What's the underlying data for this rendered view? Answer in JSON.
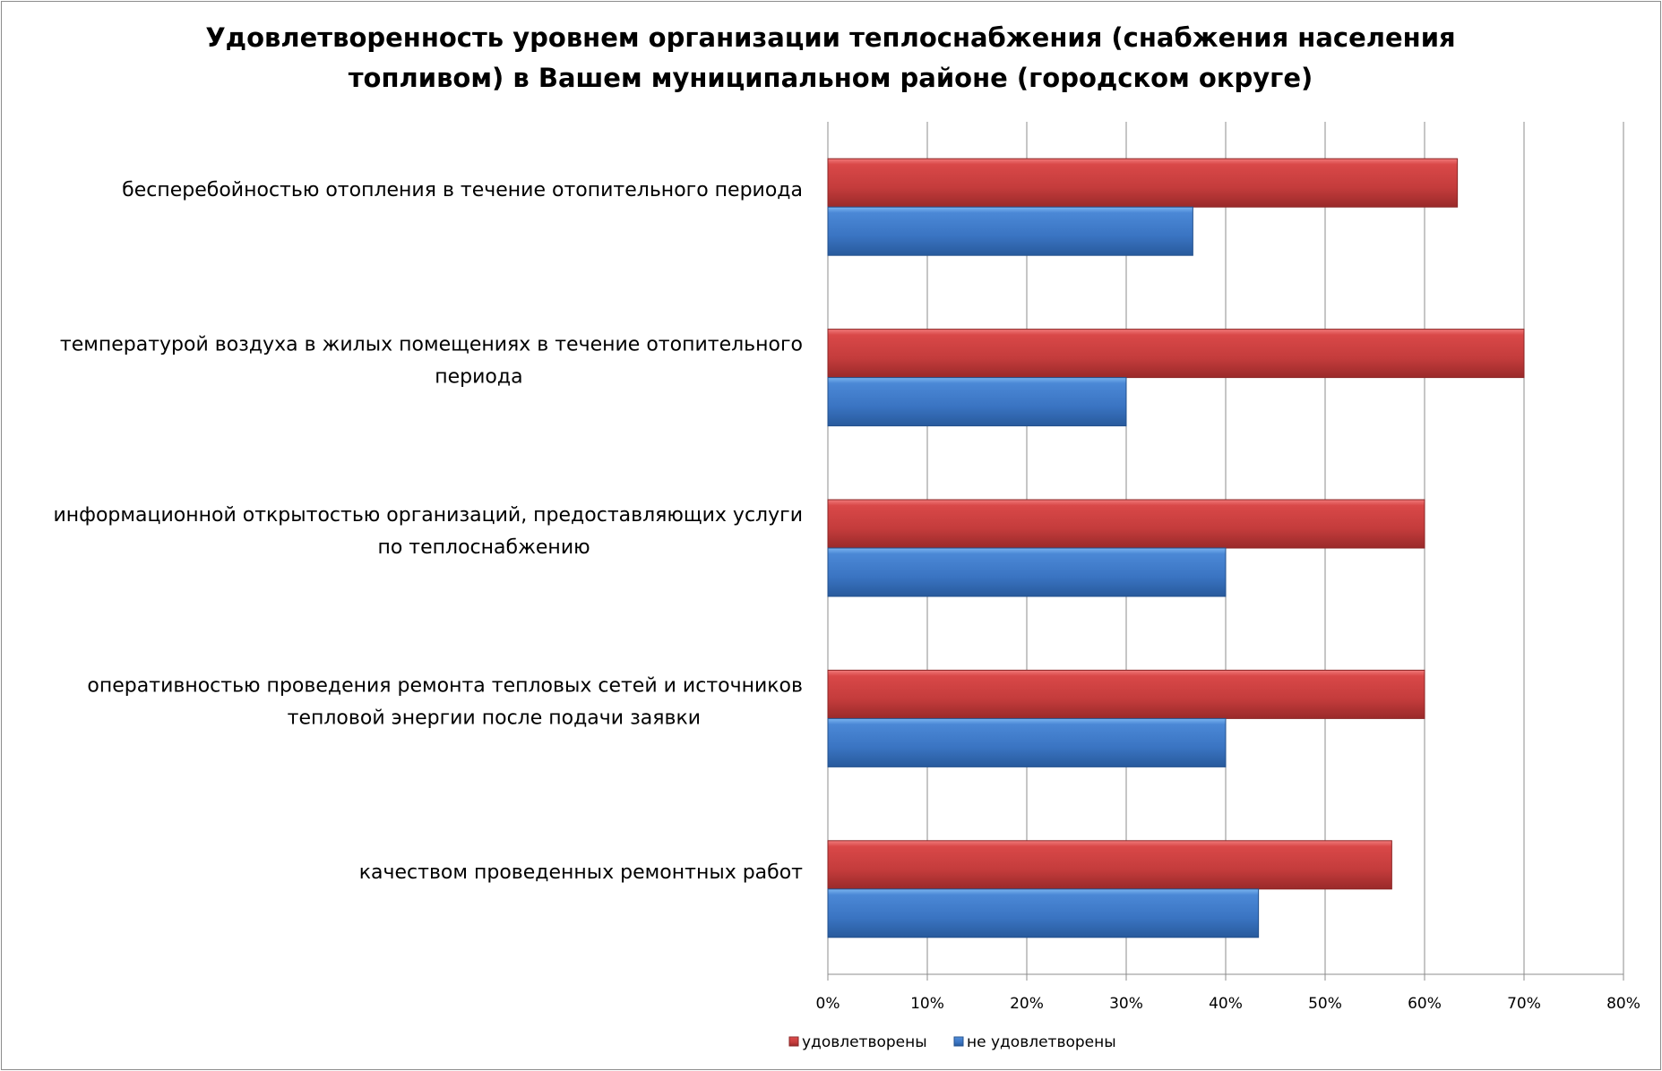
{
  "chart_data": {
    "type": "bar",
    "orientation": "horizontal",
    "title": "Удовлетворенность уровнем организации теплоснабжения (снабжения населения топливом) в Вашем муниципальном районе (городском округе)",
    "title_lines": [
      "Удовлетворенность уровнем организации теплоснабжения (снабжения населения",
      "топливом) в Вашем муниципальном районе (городском округе)"
    ],
    "categories": [
      [
        "бесперебойностью  отопления в течение отопительного периода"
      ],
      [
        "температурой  воздуха в жилых помещениях в течение отопительного",
        "периода"
      ],
      [
        "информационной открытостью  организаций, предоставляющих услуги",
        "по теплоснабжению"
      ],
      [
        "оперативностью проведения ремонта тепловых сетей и источников",
        "тепловой энергии после подачи заявки"
      ],
      [
        "качеством  проведенных ремонтных работ"
      ]
    ],
    "series": [
      {
        "name": "удовлетворены",
        "color": "#c0393b",
        "values": [
          63.3,
          70,
          60,
          60,
          56.7
        ]
      },
      {
        "name": "не удовлетворены",
        "color": "#3a72c0",
        "values": [
          36.7,
          30,
          40,
          40,
          43.3
        ]
      }
    ],
    "xlim": [
      0,
      80
    ],
    "xticks": [
      "0%",
      "10%",
      "20%",
      "30%",
      "40%",
      "50%",
      "60%",
      "70%",
      "80%"
    ],
    "grid": true,
    "legend": "bottom"
  }
}
